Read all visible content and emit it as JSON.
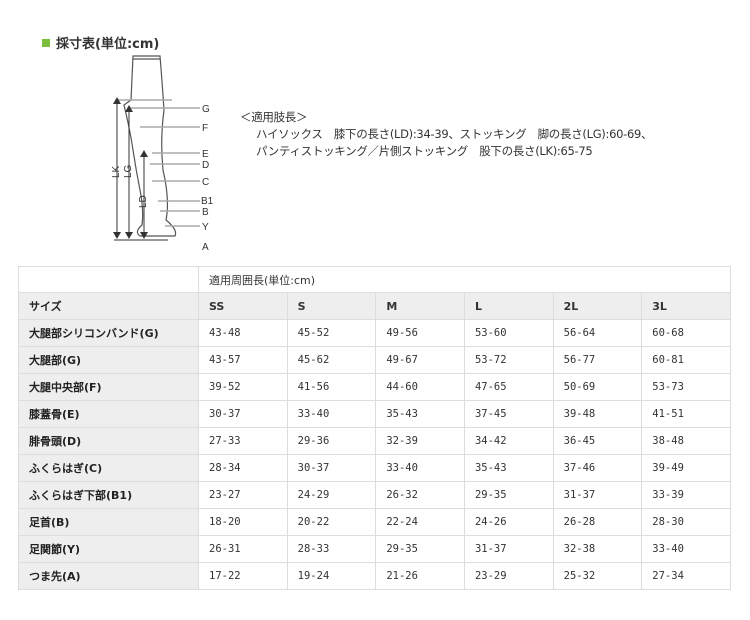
{
  "title": "採寸表(単位:cm)",
  "diagram": {
    "points": [
      "G",
      "F",
      "E",
      "D",
      "C",
      "B1",
      "B",
      "Y",
      "A"
    ],
    "lengths": [
      "LK",
      "LG",
      "LD"
    ]
  },
  "note": {
    "heading": "＜適用肢長＞",
    "line1": "ハイソックス　膝下の長さ(LD):34-39、ストッキング　脚の長さ(LG):60-69、",
    "line2": "パンティストッキング／片側ストッキング　股下の長さ(LK):65-75"
  },
  "table": {
    "group_header": "適用周囲長(単位:cm)",
    "size_label": "サイズ",
    "sizes": [
      "SS",
      "S",
      "M",
      "L",
      "2L",
      "3L"
    ],
    "rows": [
      {
        "label": "大腿部シリコンバンド(G)",
        "values": [
          "43-48",
          "45-52",
          "49-56",
          "53-60",
          "56-64",
          "60-68"
        ]
      },
      {
        "label": "大腿部(G)",
        "values": [
          "43-57",
          "45-62",
          "49-67",
          "53-72",
          "56-77",
          "60-81"
        ]
      },
      {
        "label": "大腿中央部(F)",
        "values": [
          "39-52",
          "41-56",
          "44-60",
          "47-65",
          "50-69",
          "53-73"
        ]
      },
      {
        "label": "膝蓋骨(E)",
        "values": [
          "30-37",
          "33-40",
          "35-43",
          "37-45",
          "39-48",
          "41-51"
        ]
      },
      {
        "label": "腓骨頭(D)",
        "values": [
          "27-33",
          "29-36",
          "32-39",
          "34-42",
          "36-45",
          "38-48"
        ]
      },
      {
        "label": "ふくらはぎ(C)",
        "values": [
          "28-34",
          "30-37",
          "33-40",
          "35-43",
          "37-46",
          "39-49"
        ]
      },
      {
        "label": "ふくらはぎ下部(B1)",
        "values": [
          "23-27",
          "24-29",
          "26-32",
          "29-35",
          "31-37",
          "33-39"
        ]
      },
      {
        "label": "足首(B)",
        "values": [
          "18-20",
          "20-22",
          "22-24",
          "24-26",
          "26-28",
          "28-30"
        ]
      },
      {
        "label": "足関節(Y)",
        "values": [
          "26-31",
          "28-33",
          "29-35",
          "31-37",
          "32-38",
          "33-40"
        ]
      },
      {
        "label": "つま先(A)",
        "values": [
          "17-22",
          "19-24",
          "21-26",
          "23-29",
          "25-32",
          "27-34"
        ]
      }
    ]
  }
}
